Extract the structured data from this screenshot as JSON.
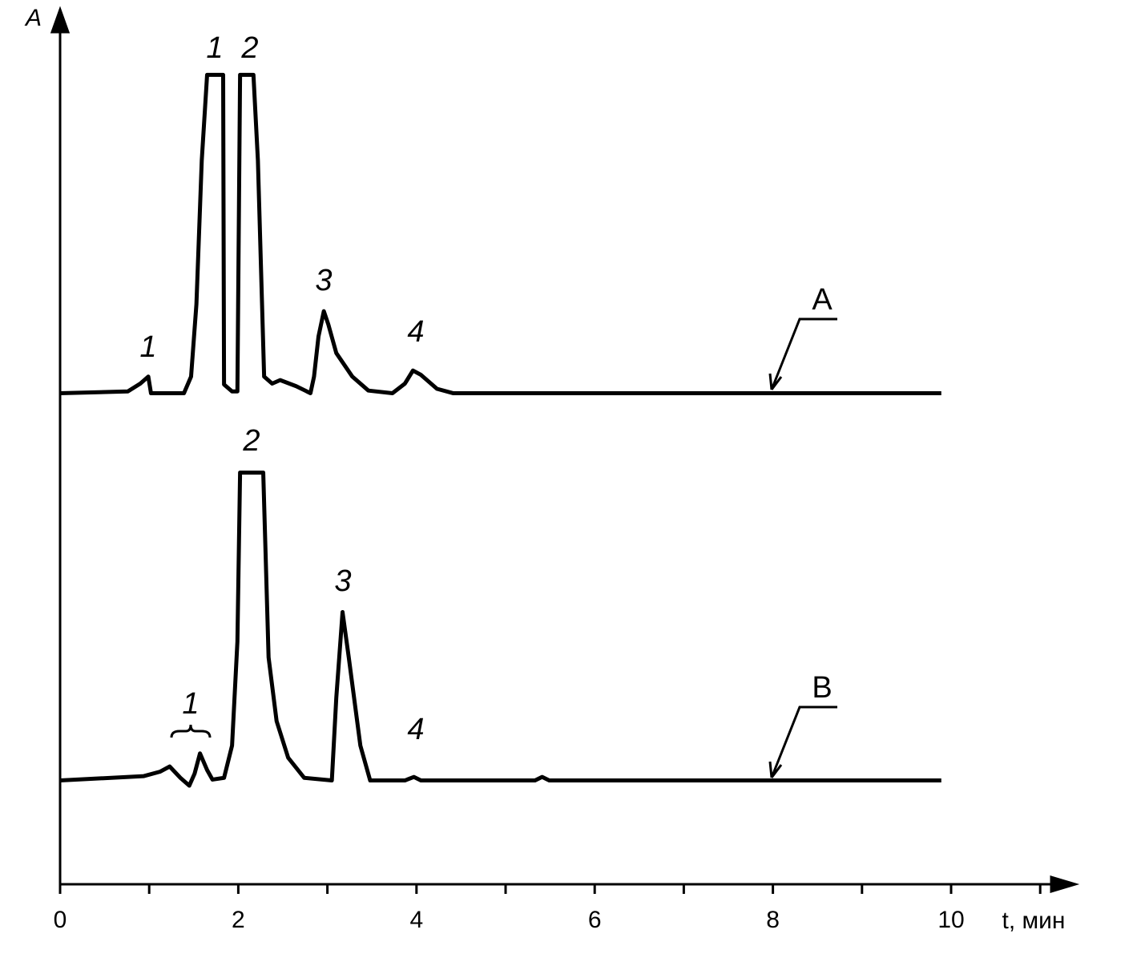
{
  "chart_data": {
    "type": "line",
    "y_label": "A",
    "x_label": "t, мин",
    "xlim": [
      0,
      11.4
    ],
    "xticks": [
      0,
      2,
      4,
      6,
      8,
      10
    ],
    "xminorticks": [
      1,
      3,
      5,
      7,
      9,
      11
    ],
    "ylim": [
      0,
      100
    ],
    "color": "#000000",
    "series": [
      {
        "name": "A",
        "color": "#000000",
        "x": [
          0,
          0.76,
          0.9,
          0.99,
          1.02,
          1.39,
          1.47,
          1.53,
          1.59,
          1.65,
          1.83,
          1.84,
          1.93,
          1.99,
          2.02,
          2.17,
          2.22,
          2.29,
          2.38,
          2.47,
          2.65,
          2.81,
          2.85,
          2.9,
          2.96,
          3.01,
          3.1,
          3.28,
          3.46,
          3.73,
          3.87,
          3.96,
          4.05,
          4.23,
          4.41,
          9.89
        ],
        "values": [
          56.3,
          56.5,
          57.4,
          58.2,
          56.3,
          56.3,
          58.2,
          66.5,
          83.0,
          92.8,
          92.8,
          57.3,
          56.5,
          56.5,
          92.8,
          92.8,
          83.0,
          58.2,
          57.4,
          57.8,
          57.1,
          56.3,
          58.2,
          62.8,
          65.7,
          64.2,
          60.9,
          58.2,
          56.6,
          56.3,
          57.4,
          58.9,
          58.4,
          56.8,
          56.3,
          56.3
        ],
        "peak_labels": [
          "1",
          "1",
          "2",
          "3",
          "4"
        ]
      },
      {
        "name": "B",
        "color": "#000000",
        "x": [
          0,
          0.94,
          1.12,
          1.23,
          1.35,
          1.45,
          1.51,
          1.57,
          1.65,
          1.71,
          1.84,
          1.93,
          1.99,
          2.02,
          2.28,
          2.34,
          2.43,
          2.56,
          2.74,
          3.05,
          3.1,
          3.17,
          3.24,
          3.37,
          3.48,
          3.87,
          3.97,
          4.05,
          5.33,
          5.41,
          5.49,
          9.89
        ],
        "values": [
          11.9,
          12.4,
          12.9,
          13.5,
          12.2,
          11.3,
          12.7,
          15.0,
          13.1,
          12.0,
          12.2,
          15.9,
          27.8,
          47.2,
          47.2,
          26.0,
          18.7,
          14.5,
          12.2,
          11.9,
          21.4,
          31.2,
          26.0,
          15.9,
          11.9,
          11.9,
          12.3,
          11.9,
          11.9,
          12.3,
          11.9,
          11.9
        ],
        "peak_labels": [
          "1",
          "2",
          "3",
          "4"
        ]
      }
    ]
  }
}
